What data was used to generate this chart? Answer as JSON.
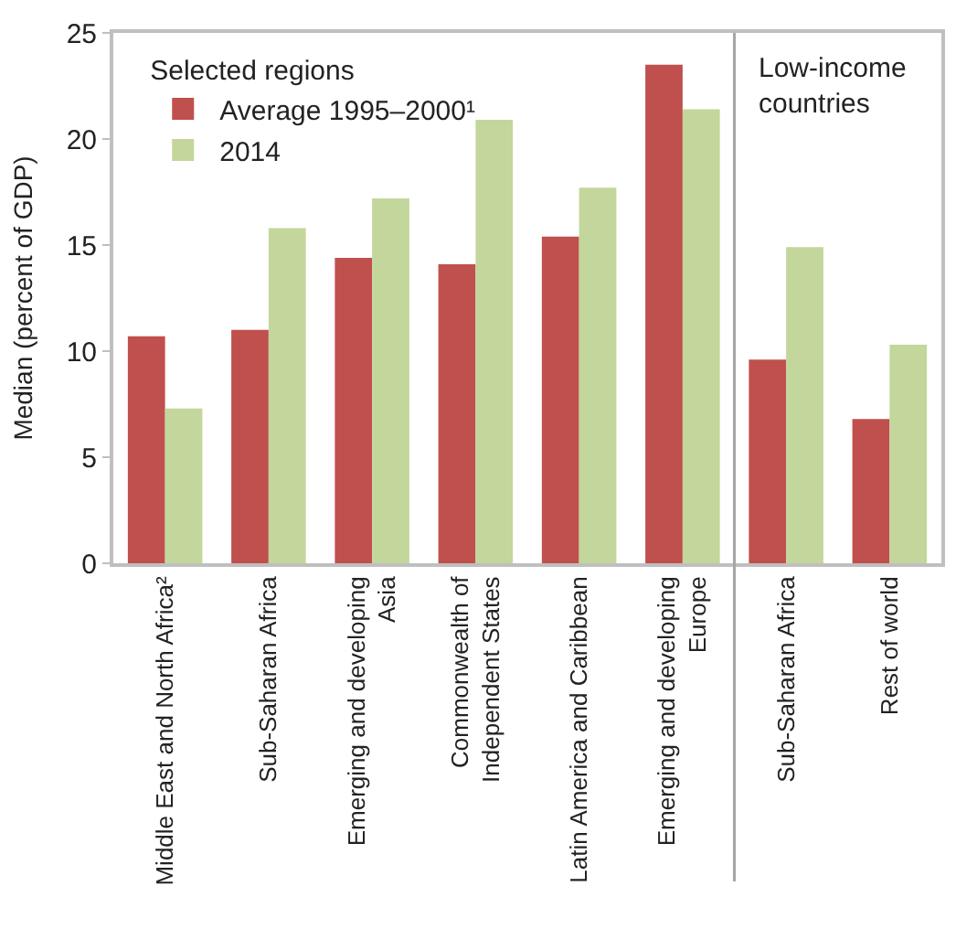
{
  "chart_data": {
    "type": "bar",
    "ylabel": "Median (percent of GDP)",
    "legend_title": "Selected regions",
    "categories": [
      "Middle East and North Africa²",
      "Sub-Saharan Africa",
      "Emerging and developing\nAsia",
      "Commonwealth of\nIndependent States",
      "Latin America and Caribbean",
      "Emerging and developing\nEurope",
      "Sub-Saharan Africa",
      "Rest of world"
    ],
    "series": [
      {
        "name": "Average 1995–2000¹",
        "color": "#c0504d",
        "values": [
          10.7,
          11.0,
          14.4,
          14.1,
          15.4,
          23.5,
          9.6,
          6.8
        ]
      },
      {
        "name": "2014",
        "color": "#c3d69b",
        "values": [
          7.3,
          15.8,
          17.2,
          20.9,
          17.7,
          21.4,
          14.9,
          10.3
        ]
      }
    ],
    "ylim": [
      0,
      25
    ],
    "yticks": [
      0,
      5,
      10,
      15,
      20,
      25
    ],
    "legend": "top left",
    "annotations": [
      "Low-income\ncountries"
    ]
  }
}
